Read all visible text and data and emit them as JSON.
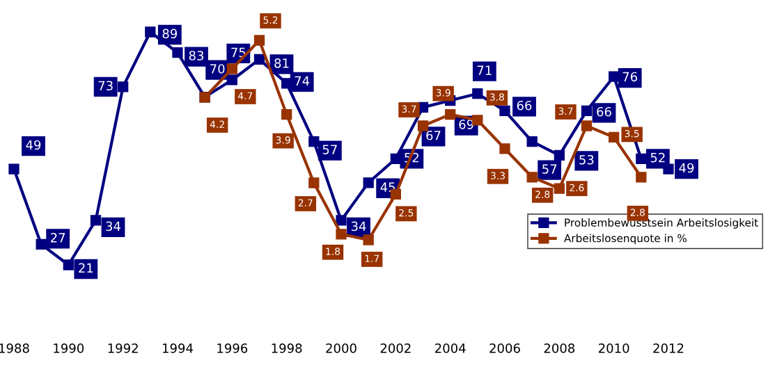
{
  "chart_data": {
    "type": "line",
    "x": [
      1988,
      1989,
      1990,
      1991,
      1992,
      1993,
      1994,
      1995,
      1996,
      1997,
      1998,
      1999,
      2000,
      2001,
      2002,
      2003,
      2004,
      2005,
      2006,
      2007,
      2008,
      2009,
      2010,
      2011,
      2012
    ],
    "series": [
      {
        "name": "Problembewusstsein Arbeitslosigkeit",
        "color": "#000080",
        "values": [
          49,
          27,
          21,
          34,
          73,
          89,
          83,
          70,
          75,
          81,
          74,
          57,
          34,
          45,
          52,
          67,
          69,
          71,
          66,
          57,
          53,
          66,
          76,
          52,
          49
        ]
      },
      {
        "name": "Arbeitslosenquote in %",
        "color": "#993300",
        "axis": "y2",
        "values": [
          null,
          null,
          null,
          null,
          null,
          null,
          null,
          4.2,
          4.7,
          5.2,
          3.9,
          2.7,
          1.8,
          1.7,
          2.5,
          3.7,
          3.9,
          3.8,
          3.3,
          2.8,
          2.6,
          3.7,
          3.5,
          2.8,
          null
        ]
      }
    ],
    "xlim": [
      1988,
      2012
    ],
    "xticks": [
      1988,
      1990,
      1992,
      1994,
      1996,
      1998,
      2000,
      2002,
      2004,
      2006,
      2008,
      2010,
      2012
    ],
    "tick_labels": "x",
    "marker": "square",
    "line_style": "solid",
    "data_labels": true,
    "grid": false,
    "legend": "bottom right"
  }
}
